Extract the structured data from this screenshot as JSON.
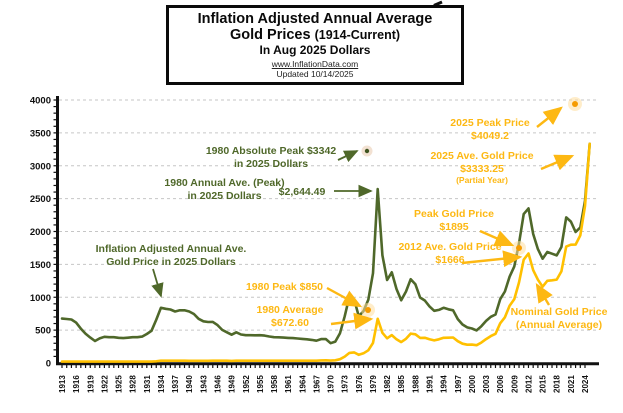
{
  "title": {
    "line1": "Inflation Adjusted Annual Average",
    "line2_main": "Gold Prices",
    "line2_sub": "(1914-Current)",
    "line3": "In Aug 2025 Dollars",
    "website": "www.InflationData.com",
    "updated": "Updated 10/14/2025"
  },
  "colors": {
    "adjusted_line": "#4f682a",
    "nominal_line": "#ffc000",
    "annotation_green": "#4f682a",
    "annotation_gold": "#fdb813",
    "gridline": "#c6c6c6",
    "axis": "#111111"
  },
  "annotations": {
    "abs1980": {
      "line1": "1980 Absolute Peak $3342",
      "line2": "in 2025 Dollars"
    },
    "annave1980": {
      "line1": "1980 Annual Ave. (Peak)",
      "line2": "in 2025 Dollars",
      "value": "$2,644.49"
    },
    "adjusted": {
      "line1": "Inflation Adjusted Annual Ave.",
      "line2": "Gold Price in 2025 Dollars"
    },
    "peak1980": {
      "line1": "1980 Peak $850"
    },
    "ave1980": {
      "line1": "1980 Average",
      "line2": "$672.60"
    },
    "peak2025": {
      "line1": "2025 Peak Price",
      "line2": "$4049.2"
    },
    "ave2025": {
      "line1": "2025 Ave. Gold Price",
      "line2": "$3333.25",
      "line3": "(Partial Year)"
    },
    "peakgold": {
      "line1": "Peak Gold Price",
      "line2": "$1895"
    },
    "ave2012": {
      "line1": "2012 Ave. Gold Price",
      "line2": "$1666"
    },
    "nominal": {
      "line1": "Nominal Gold Price",
      "line2": "(Annual Average)"
    }
  },
  "chart_data": {
    "type": "line",
    "title": "Inflation Adjusted Annual Average Gold Prices (1914-Current) In Aug 2025 Dollars",
    "xlabel": "",
    "ylabel": "",
    "x_range": [
      1913,
      2025
    ],
    "ylim": [
      0,
      4000
    ],
    "grid": "horizontal-dashed",
    "legend_position": "none (labels annotated on plot)",
    "xticks": [
      "1913",
      "1916",
      "1919",
      "1922",
      "1925",
      "1928",
      "1931",
      "1934",
      "1937",
      "1940",
      "1943",
      "1946",
      "1949",
      "1952",
      "1955",
      "1958",
      "1961",
      "1964",
      "1967",
      "1970",
      "1973",
      "1976",
      "1979",
      "1982",
      "1985",
      "1988",
      "1991",
      "1994",
      "1997",
      "2000",
      "2003",
      "2006",
      "2009",
      "2012",
      "2015",
      "2018",
      "2021",
      "2024"
    ],
    "yticks": [
      0,
      500,
      1000,
      1500,
      2000,
      2500,
      3000,
      3500,
      4000
    ],
    "x_start_year": 1913,
    "series": [
      {
        "name": "Inflation Adjusted Annual Ave. Gold Price in 2025 Dollars",
        "color": "#4f682a",
        "values": [
          676,
          669,
          662,
          614,
          523,
          444,
          387,
          335,
          374,
          399,
          392,
          392,
          383,
          378,
          385,
          392,
          392,
          401,
          441,
          489,
          656,
          839,
          824,
          813,
          783,
          801,
          802,
          783,
          746,
          673,
          634,
          623,
          625,
          577,
          504,
          467,
          431,
          467,
          433,
          423,
          423,
          422,
          423,
          417,
          403,
          393,
          391,
          386,
          382,
          378,
          372,
          367,
          361,
          351,
          339,
          363,
          363,
          301,
          325,
          453,
          711,
          1012,
          969,
          710,
          790,
          961,
          1366,
          2644.49,
          1639,
          1262,
          1379,
          1126,
          954,
          1088,
          1275,
          1197,
          996,
          951,
          861,
          794,
          807,
          840,
          817,
          801,
          668,
          585,
          542,
          525,
          496,
          558,
          640,
          702,
          738,
          970,
          1087,
          1312,
          1469,
          1819,
          2264,
          2351,
          1962,
          1733,
          1586,
          1688,
          1662,
          1637,
          1765,
          2215,
          2150,
          1993,
          2063,
          2464,
          3333.25
        ]
      },
      {
        "name": "Nominal Gold Price (Annual Average)",
        "color": "#ffc000",
        "values": [
          20.7,
          20.7,
          20.7,
          20.7,
          20.7,
          20.7,
          20.7,
          20.7,
          20.7,
          20.7,
          20.7,
          20.7,
          20.7,
          20.7,
          20.7,
          20.7,
          20.7,
          20.7,
          20.7,
          20.7,
          26.3,
          34.7,
          34.8,
          34.9,
          34.8,
          34.9,
          34.4,
          33.9,
          33.9,
          33.9,
          33.9,
          33.9,
          34.7,
          34.7,
          34.7,
          34.7,
          31.7,
          34.7,
          34.7,
          34.6,
          34.8,
          35,
          35,
          35,
          35,
          35.1,
          35.1,
          35.3,
          35.3,
          35.2,
          35.1,
          35.1,
          35.1,
          35.1,
          35,
          39,
          41.1,
          36,
          40.6,
          58.4,
          97.4,
          154,
          160.9,
          124.7,
          147.8,
          193.4,
          306,
          672.6,
          460,
          375.8,
          424.4,
          360.8,
          317.3,
          367.9,
          446.5,
          437,
          381.4,
          383.5,
          362.1,
          343.8,
          359.8,
          384,
          384.2,
          387.9,
          331,
          294.2,
          278.9,
          279.1,
          271,
          309.7,
          363.4,
          409.2,
          444.7,
          603.5,
          695.4,
          871.9,
          972.4,
          1224.5,
          1571.5,
          1666,
          1411.2,
          1266.4,
          1160.1,
          1250.8,
          1257.2,
          1268.5,
          1392.6,
          1769.6,
          1798.6,
          1800.1,
          1940.5,
          2386.2,
          3333.25
        ]
      }
    ],
    "markers": [
      {
        "id": "peak2025",
        "label": "2025 Peak Price",
        "year": 2025,
        "value": 4049.2,
        "style": "gold-glow"
      },
      {
        "id": "abs1980",
        "label": "1980 Absolute Peak in 2025 Dollars",
        "year": 1980,
        "value": 3342,
        "style": "green-dot"
      },
      {
        "id": "peak2011",
        "label": "Peak Gold Price",
        "year": 2011,
        "value": 1895,
        "style": "gold-glow"
      },
      {
        "id": "peak1980",
        "label": "1980 Peak",
        "year": 1980,
        "value": 850,
        "style": "gold-glow"
      }
    ]
  }
}
